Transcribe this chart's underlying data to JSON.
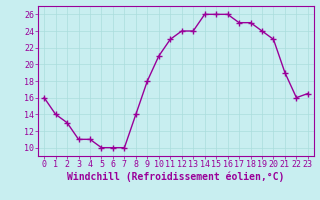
{
  "x": [
    0,
    1,
    2,
    3,
    4,
    5,
    6,
    7,
    8,
    9,
    10,
    11,
    12,
    13,
    14,
    15,
    16,
    17,
    18,
    19,
    20,
    21,
    22,
    23
  ],
  "y": [
    16,
    14,
    13,
    11,
    11,
    10,
    10,
    10,
    14,
    18,
    21,
    23,
    24,
    24,
    26,
    26,
    26,
    25,
    25,
    24,
    23,
    19,
    16,
    16.5
  ],
  "line_color": "#990099",
  "marker": "+",
  "marker_size": 4,
  "marker_lw": 1.0,
  "line_width": 1.0,
  "xlabel": "Windchill (Refroidissement éolien,°C)",
  "xlim_min": -0.5,
  "xlim_max": 23.5,
  "ylim_min": 9,
  "ylim_max": 27,
  "yticks": [
    10,
    12,
    14,
    16,
    18,
    20,
    22,
    24,
    26
  ],
  "xticks": [
    0,
    1,
    2,
    3,
    4,
    5,
    6,
    7,
    8,
    9,
    10,
    11,
    12,
    13,
    14,
    15,
    16,
    17,
    18,
    19,
    20,
    21,
    22,
    23
  ],
  "xtick_labels": [
    "0",
    "1",
    "2",
    "3",
    "4",
    "5",
    "6",
    "7",
    "8",
    "9",
    "10",
    "11",
    "12",
    "13",
    "14",
    "15",
    "16",
    "17",
    "18",
    "19",
    "20",
    "21",
    "22",
    "23"
  ],
  "background_color": "#c8eef0",
  "grid_color": "#aadddd",
  "spine_color": "#990099",
  "tick_fontsize": 6,
  "label_fontsize": 7,
  "fig_width": 3.2,
  "fig_height": 2.0,
  "dpi": 100
}
